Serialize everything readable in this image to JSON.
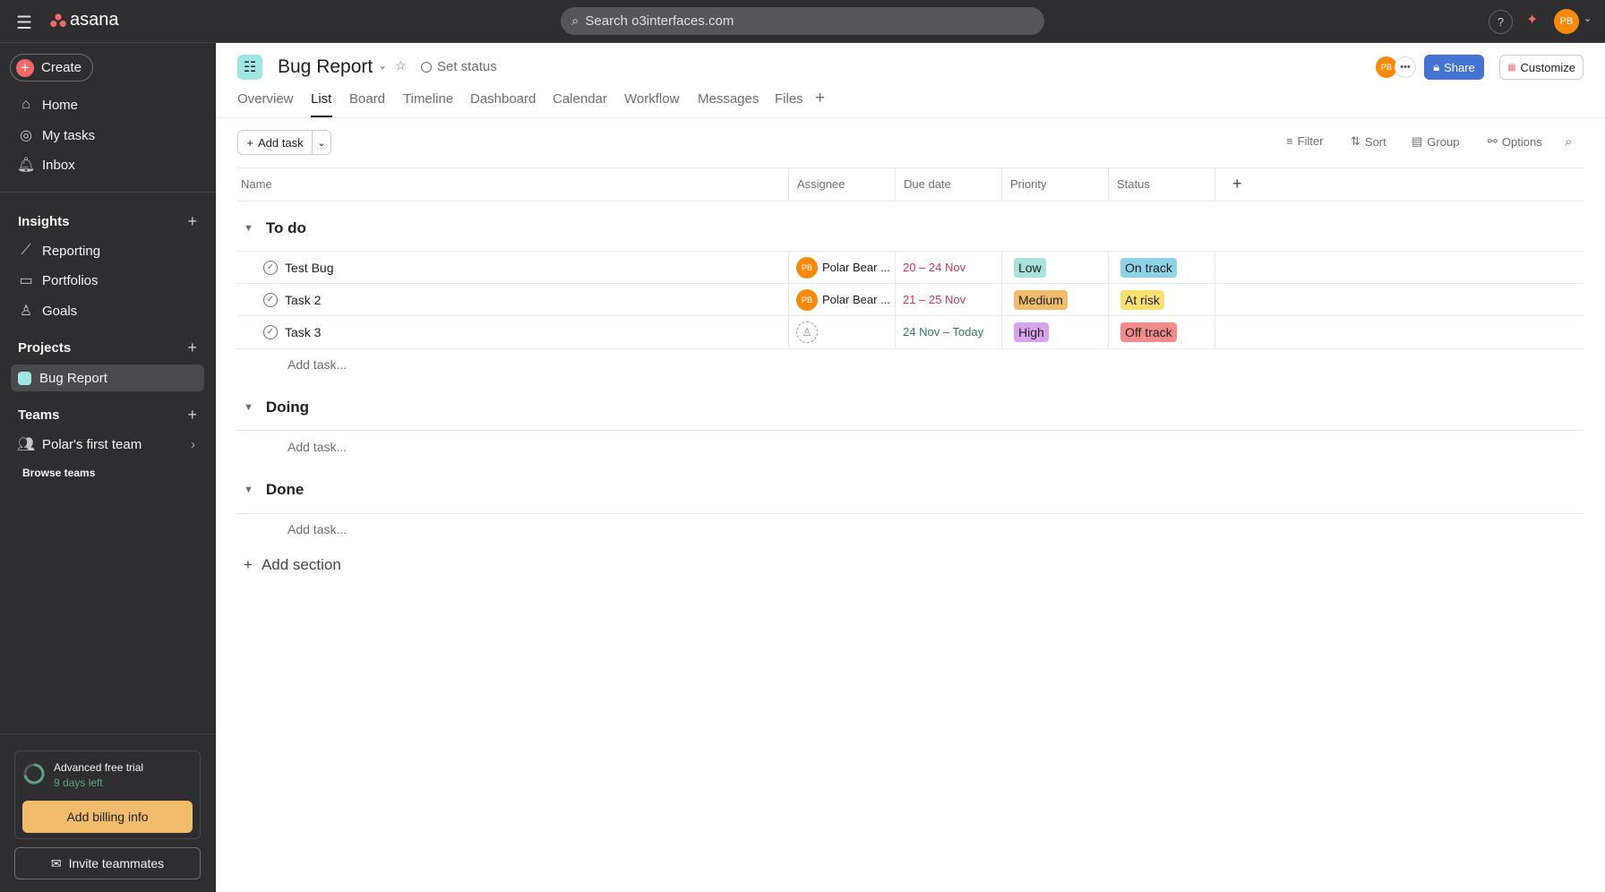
{
  "topbar": {
    "logo": "asana",
    "search_placeholder": "Search o3interfaces.com",
    "user_initials": "PB"
  },
  "sidebar": {
    "create": "Create",
    "nav": [
      "Home",
      "My tasks",
      "Inbox"
    ],
    "insights": "Insights",
    "insights_items": [
      "Reporting",
      "Portfolios",
      "Goals"
    ],
    "projects": "Projects",
    "project_items": [
      "Bug Report"
    ],
    "teams": "Teams",
    "team_items": [
      "Polar's first team"
    ],
    "browse_teams": "Browse teams",
    "trial_title": "Advanced free trial",
    "trial_days": "9 days left",
    "billing": "Add billing info",
    "invite": "Invite teammates"
  },
  "project": {
    "title": "Bug Report",
    "set_status": "Set status",
    "share": "Share",
    "customize": "Customize",
    "member_initials": "PB",
    "tabs": [
      "Overview",
      "List",
      "Board",
      "Timeline",
      "Dashboard",
      "Calendar",
      "Workflow",
      "Messages",
      "Files"
    ],
    "active_tab": "List"
  },
  "toolbar": {
    "add_task": "Add task",
    "filter": "Filter",
    "sort": "Sort",
    "group": "Group",
    "options": "Options"
  },
  "columns": [
    "Name",
    "Assignee",
    "Due date",
    "Priority",
    "Status"
  ],
  "sections": [
    {
      "name": "To do",
      "tasks": [
        {
          "name": "Test Bug",
          "assignee": "Polar Bear ...",
          "assignee_initials": "PB",
          "due": "20 – 24 Nov",
          "due_color": "#c9375a",
          "priority": "Low",
          "priority_color": "#a9e2dc",
          "status": "On track",
          "status_color": "#8fd1e5"
        },
        {
          "name": "Task 2",
          "assignee": "Polar Bear ...",
          "assignee_initials": "PB",
          "due": "21 – 25 Nov",
          "due_color": "#c9375a",
          "priority": "Medium",
          "priority_color": "#f1bd6c",
          "status": "At risk",
          "status_color": "#f8df72"
        },
        {
          "name": "Task 3",
          "assignee": "",
          "due": "24 Nov – Today",
          "due_color": "#2f7d5c",
          "priority": "High",
          "priority_color": "#d8a5ec",
          "status": "Off track",
          "status_color": "#f28b8b"
        }
      ]
    },
    {
      "name": "Doing",
      "tasks": []
    },
    {
      "name": "Done",
      "tasks": []
    }
  ],
  "add_task_inline": "Add task...",
  "add_section": "Add section"
}
